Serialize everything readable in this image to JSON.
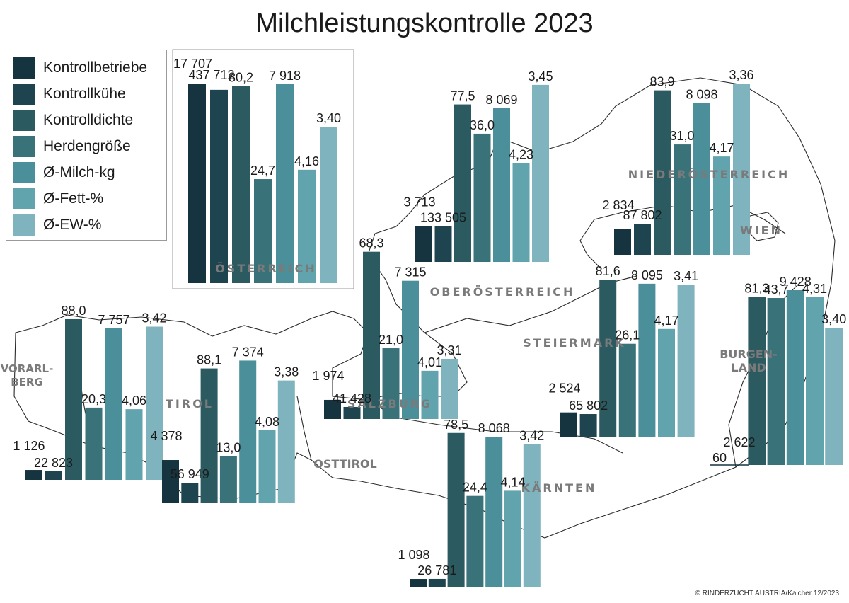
{
  "title": "Milchleistungskontrolle 2023",
  "footer": "© RINDERZUCHT AUSTRIA/Kalcher 12/2023",
  "legend": [
    {
      "label": "Kontrollbetriebe",
      "color": "#163440"
    },
    {
      "label": "Kontrollkühe",
      "color": "#1e4450"
    },
    {
      "label": "Kontrolldichte",
      "color": "#2b5a61"
    },
    {
      "label": "Herdengröße",
      "color": "#3a727a"
    },
    {
      "label": "Ø-Milch-kg",
      "color": "#4a8f99"
    },
    {
      "label": "Ø-Fett-%",
      "color": "#62a4ae"
    },
    {
      "label": "Ø-EW-%",
      "color": "#7fb4bf"
    }
  ],
  "chart_data": {
    "type": "bar",
    "title": "Milchleistungskontrolle 2023",
    "series_names": [
      "Kontrollbetriebe",
      "Kontrollkühe",
      "Kontrolldichte",
      "Herdengröße",
      "Ø-Milch-kg",
      "Ø-Fett-%",
      "Ø-EW-%"
    ],
    "regions": [
      {
        "name": "ÖSTERREICH",
        "values": [
          17707,
          437712,
          80.2,
          24.7,
          7918,
          4.16,
          3.4
        ],
        "labels": [
          "17 707",
          "437 712",
          "80,2",
          "24,7",
          "7 918",
          "4,16",
          "3,40"
        ]
      },
      {
        "name": "OBERÖSTERREICH",
        "values": [
          3713,
          133505,
          77.5,
          36.0,
          8069,
          4.23,
          3.45
        ],
        "labels": [
          "3 713",
          "133 505",
          "77,5",
          "36,0",
          "8 069",
          "4,23",
          "3,45"
        ]
      },
      {
        "name": "NIEDERÖSTERREICH",
        "values": [
          2834,
          87802,
          83.9,
          31.0,
          8098,
          4.17,
          3.36
        ],
        "labels": [
          "2 834",
          "87 802",
          "83,9",
          "31,0",
          "8 098",
          "4,17",
          "3,36"
        ]
      },
      {
        "name": "WIEN",
        "values": [],
        "labels": []
      },
      {
        "name": "VORARLBERG",
        "values": [
          1126,
          22823,
          88.0,
          20.3,
          7757,
          4.06,
          3.42
        ],
        "labels": [
          "1 126",
          "22 823",
          "88,0",
          "20,3",
          "7 757",
          "4,06",
          "3,42"
        ]
      },
      {
        "name": "TIROL",
        "values": [
          4378,
          56949,
          88.1,
          13.0,
          7374,
          4.08,
          3.38
        ],
        "labels": [
          "4 378",
          "56 949",
          "88,1",
          "13,0",
          "7 374",
          "4,08",
          "3,38"
        ]
      },
      {
        "name": "SALZBURG",
        "values": [
          1974,
          41428,
          68.3,
          21.0,
          7315,
          4.01,
          3.31
        ],
        "labels": [
          "1 974",
          "41 428",
          "68,3",
          "21,0",
          "7 315",
          "4,01",
          "3,31"
        ]
      },
      {
        "name": "STEIERMARK",
        "values": [
          2524,
          65802,
          81.6,
          26.1,
          8095,
          4.17,
          3.41
        ],
        "labels": [
          "2 524",
          "65 802",
          "81,6",
          "26,1",
          "8 095",
          "4,17",
          "3,41"
        ]
      },
      {
        "name": "BURGENLAND",
        "values": [
          60,
          2622,
          81.3,
          43.7,
          9428,
          4.31,
          3.4
        ],
        "labels": [
          "60",
          "2 622",
          "81,3",
          "43,7",
          "9 428",
          "4,31",
          "3,40"
        ]
      },
      {
        "name": "KÄRNTEN",
        "values": [
          1098,
          26781,
          78.5,
          24.4,
          8068,
          4.14,
          3.42
        ],
        "labels": [
          "1 098",
          "26 781",
          "78,5",
          "24,4",
          "8 068",
          "4,14",
          "3,42"
        ]
      },
      {
        "name": "OSTTIROL",
        "values": [],
        "labels": []
      }
    ]
  }
}
